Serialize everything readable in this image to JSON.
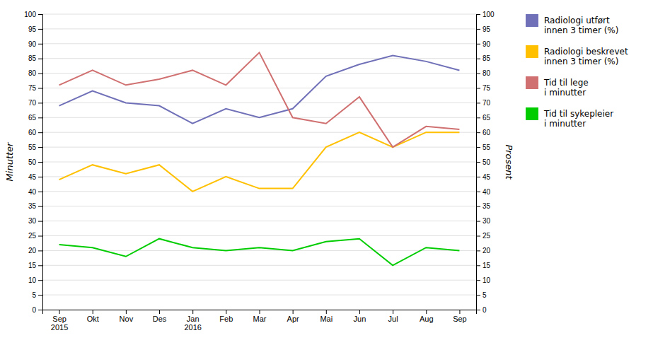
{
  "chart_data": {
    "type": "line",
    "categories": [
      "Sep\n2015",
      "Okt",
      "Nov",
      "Des",
      "Jan\n2016",
      "Feb",
      "Mar",
      "Apr",
      "Mai",
      "Jun",
      "Jul",
      "Aug",
      "Sep"
    ],
    "series": [
      {
        "name": "Radiologi utført\ninnen 3 timer (%)",
        "color": "#7070b8",
        "axis": "y2",
        "values": [
          69,
          74,
          70,
          69,
          63,
          68,
          65,
          68,
          79,
          83,
          86,
          84,
          81
        ]
      },
      {
        "name": "Radiologi beskrevet\ninnen 3 timer (%)",
        "color": "#ffc000",
        "axis": "y2",
        "values": [
          44,
          49,
          46,
          49,
          40,
          45,
          41,
          41,
          55,
          60,
          55,
          60,
          60
        ]
      },
      {
        "name": "Tid til lege\ni minutter",
        "color": "#d07070",
        "values": [
          76,
          81,
          76,
          78,
          81,
          76,
          87,
          65,
          63,
          72,
          55,
          62,
          61
        ]
      },
      {
        "name": "Tid til sykepleier\ni minutter",
        "color": "#00cc00",
        "values": [
          22,
          21,
          18,
          24,
          21,
          20,
          21,
          20,
          23,
          24,
          15,
          21,
          20
        ]
      }
    ],
    "y_label": "Minutter",
    "y2_label": "Prosent",
    "ylim": [
      0,
      100
    ],
    "yticks": [
      0,
      5,
      10,
      15,
      20,
      25,
      30,
      35,
      40,
      45,
      50,
      55,
      60,
      65,
      70,
      75,
      80,
      85,
      90,
      95,
      100
    ],
    "y2lim": [
      0,
      100
    ],
    "y2ticks": [
      0,
      5,
      10,
      15,
      20,
      25,
      30,
      35,
      40,
      45,
      50,
      55,
      60,
      65,
      70,
      75,
      80,
      85,
      90,
      95,
      100
    ],
    "grid": true,
    "legend": "right"
  }
}
